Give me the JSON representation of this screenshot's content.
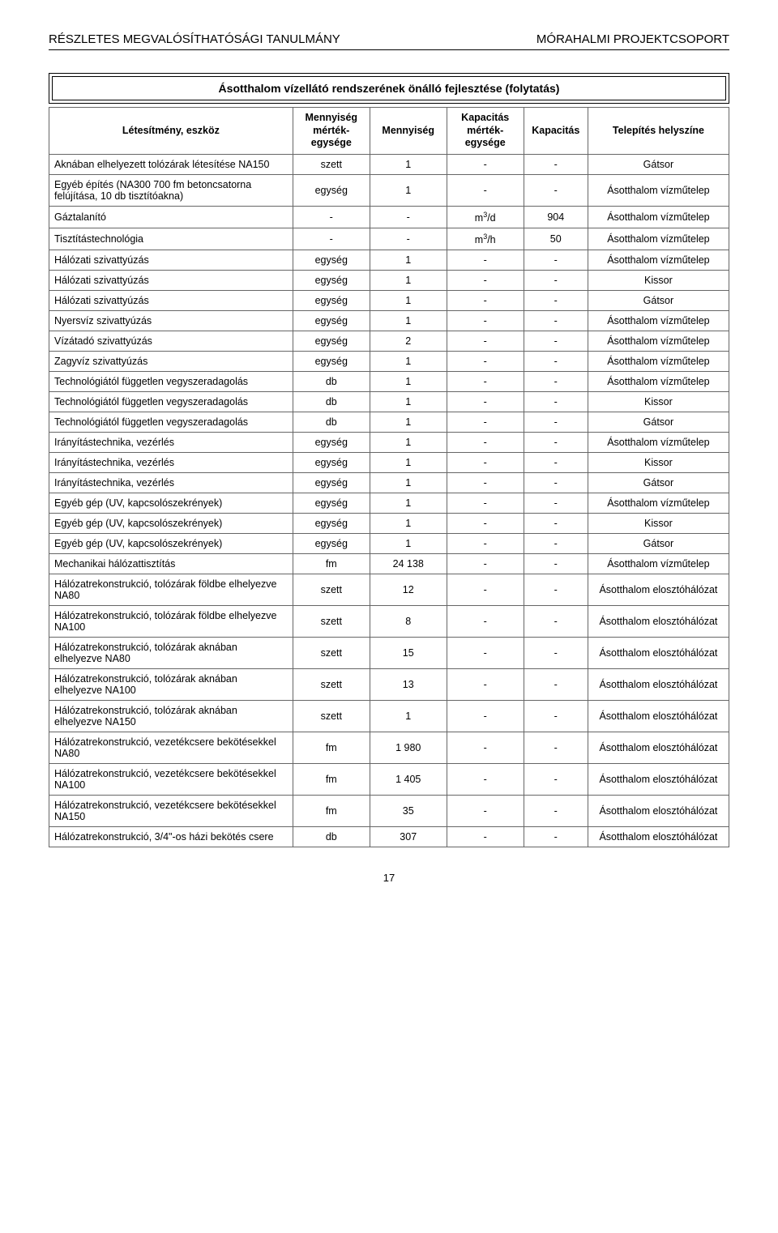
{
  "header": {
    "left": "RÉSZLETES MEGVALÓSÍTHATÓSÁGI TANULMÁNY",
    "right": "MÓRAHALMI PROJEKTCSOPORT"
  },
  "table": {
    "title": "Ásotthalom vízellátó rendszerének önálló fejlesztése (folytatás)",
    "columns": [
      "Létesítmény, eszköz",
      "Mennyiség mérték-egysége",
      "Mennyiség",
      "Kapacitás mérték-egysége",
      "Kapacitás",
      "Telepítés helyszíne"
    ],
    "rows": [
      {
        "name": "Aknában elhelyezett tolózárak létesítése NA150",
        "unit_q": "szett",
        "qty": "1",
        "unit_c": "-",
        "cap": "-",
        "loc": "Gátsor"
      },
      {
        "name": "Egyéb építés (NA300 700 fm betoncsatorna felújítása, 10 db tisztítóakna)",
        "unit_q": "egység",
        "qty": "1",
        "unit_c": "-",
        "cap": "-",
        "loc": "Ásotthalom vízműtelep"
      },
      {
        "name": "Gáztalanító",
        "unit_q": "-",
        "qty": "-",
        "unit_c": "m³/d",
        "cap": "904",
        "loc": "Ásotthalom vízműtelep"
      },
      {
        "name": "Tisztítástechnológia",
        "unit_q": "-",
        "qty": "-",
        "unit_c": "m³/h",
        "cap": "50",
        "loc": "Ásotthalom vízműtelep"
      },
      {
        "name": "Hálózati szivattyúzás",
        "unit_q": "egység",
        "qty": "1",
        "unit_c": "-",
        "cap": "-",
        "loc": "Ásotthalom vízműtelep"
      },
      {
        "name": "Hálózati szivattyúzás",
        "unit_q": "egység",
        "qty": "1",
        "unit_c": "-",
        "cap": "-",
        "loc": "Kissor"
      },
      {
        "name": "Hálózati szivattyúzás",
        "unit_q": "egység",
        "qty": "1",
        "unit_c": "-",
        "cap": "-",
        "loc": "Gátsor"
      },
      {
        "name": "Nyersvíz szivattyúzás",
        "unit_q": "egység",
        "qty": "1",
        "unit_c": "-",
        "cap": "-",
        "loc": "Ásotthalom vízműtelep"
      },
      {
        "name": "Vízátadó szivattyúzás",
        "unit_q": "egység",
        "qty": "2",
        "unit_c": "-",
        "cap": "-",
        "loc": "Ásotthalom vízműtelep"
      },
      {
        "name": "Zagyvíz szivattyúzás",
        "unit_q": "egység",
        "qty": "1",
        "unit_c": "-",
        "cap": "-",
        "loc": "Ásotthalom vízműtelep"
      },
      {
        "name": "Technológiától független vegyszeradagolás",
        "unit_q": "db",
        "qty": "1",
        "unit_c": "-",
        "cap": "-",
        "loc": "Ásotthalom vízműtelep"
      },
      {
        "name": "Technológiától független vegyszeradagolás",
        "unit_q": "db",
        "qty": "1",
        "unit_c": "-",
        "cap": "-",
        "loc": "Kissor"
      },
      {
        "name": "Technológiától független vegyszeradagolás",
        "unit_q": "db",
        "qty": "1",
        "unit_c": "-",
        "cap": "-",
        "loc": "Gátsor"
      },
      {
        "name": "Irányítástechnika, vezérlés",
        "unit_q": "egység",
        "qty": "1",
        "unit_c": "-",
        "cap": "-",
        "loc": "Ásotthalom vízműtelep"
      },
      {
        "name": "Irányítástechnika, vezérlés",
        "unit_q": "egység",
        "qty": "1",
        "unit_c": "-",
        "cap": "-",
        "loc": "Kissor"
      },
      {
        "name": "Irányítástechnika, vezérlés",
        "unit_q": "egység",
        "qty": "1",
        "unit_c": "-",
        "cap": "-",
        "loc": "Gátsor"
      },
      {
        "name": "Egyéb gép (UV, kapcsolószekrények)",
        "unit_q": "egység",
        "qty": "1",
        "unit_c": "-",
        "cap": "-",
        "loc": "Ásotthalom vízműtelep"
      },
      {
        "name": "Egyéb gép (UV, kapcsolószekrények)",
        "unit_q": "egység",
        "qty": "1",
        "unit_c": "-",
        "cap": "-",
        "loc": "Kissor"
      },
      {
        "name": "Egyéb gép (UV, kapcsolószekrények)",
        "unit_q": "egység",
        "qty": "1",
        "unit_c": "-",
        "cap": "-",
        "loc": "Gátsor"
      },
      {
        "name": "Mechanikai hálózattisztítás",
        "unit_q": "fm",
        "qty": "24 138",
        "unit_c": "-",
        "cap": "-",
        "loc": "Ásotthalom vízműtelep"
      },
      {
        "name": "Hálózatrekonstrukció, tolózárak földbe elhelyezve NA80",
        "unit_q": "szett",
        "qty": "12",
        "unit_c": "-",
        "cap": "-",
        "loc": "Ásotthalom elosztóhálózat"
      },
      {
        "name": "Hálózatrekonstrukció, tolózárak földbe elhelyezve NA100",
        "unit_q": "szett",
        "qty": "8",
        "unit_c": "-",
        "cap": "-",
        "loc": "Ásotthalom elosztóhálózat"
      },
      {
        "name": "Hálózatrekonstrukció, tolózárak aknában elhelyezve NA80",
        "unit_q": "szett",
        "qty": "15",
        "unit_c": "-",
        "cap": "-",
        "loc": "Ásotthalom elosztóhálózat"
      },
      {
        "name": "Hálózatrekonstrukció, tolózárak aknában elhelyezve NA100",
        "unit_q": "szett",
        "qty": "13",
        "unit_c": "-",
        "cap": "-",
        "loc": "Ásotthalom elosztóhálózat"
      },
      {
        "name": "Hálózatrekonstrukció, tolózárak aknában elhelyezve NA150",
        "unit_q": "szett",
        "qty": "1",
        "unit_c": "-",
        "cap": "-",
        "loc": "Ásotthalom elosztóhálózat"
      },
      {
        "name": "Hálózatrekonstrukció, vezetékcsere bekötésekkel NA80",
        "unit_q": "fm",
        "qty": "1 980",
        "unit_c": "-",
        "cap": "-",
        "loc": "Ásotthalom elosztóhálózat"
      },
      {
        "name": "Hálózatrekonstrukció, vezetékcsere bekötésekkel NA100",
        "unit_q": "fm",
        "qty": "1 405",
        "unit_c": "-",
        "cap": "-",
        "loc": "Ásotthalom elosztóhálózat"
      },
      {
        "name": "Hálózatrekonstrukció, vezetékcsere bekötésekkel NA150",
        "unit_q": "fm",
        "qty": "35",
        "unit_c": "-",
        "cap": "-",
        "loc": "Ásotthalom elosztóhálózat"
      },
      {
        "name": "Hálózatrekonstrukció, 3/4\"-os házi bekötés csere",
        "unit_q": "db",
        "qty": "307",
        "unit_c": "-",
        "cap": "-",
        "loc": "Ásotthalom elosztóhálózat"
      }
    ]
  },
  "footer": {
    "page": "17"
  }
}
